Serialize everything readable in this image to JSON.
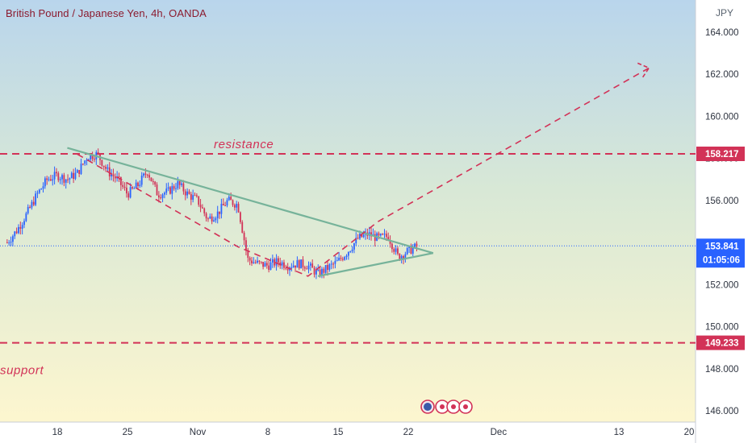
{
  "header": {
    "title": "British Pound / Japanese Yen, 4h, OANDA",
    "currency": "JPY"
  },
  "colors": {
    "up": "#2962ff",
    "down": "#d23257",
    "trendline": "#76b39a",
    "annotation": "#d23257",
    "price_line": "#2962ff"
  },
  "chart_data": {
    "type": "candlestick",
    "title": "British Pound / Japanese Yen, 4h, OANDA",
    "ylabel": "JPY",
    "ylim": [
      145.7,
      164.9
    ],
    "y_ticks": [
      "164.000",
      "162.000",
      "160.000",
      "158.000",
      "156.000",
      "152.000",
      "150.000",
      "148.000",
      "146.000"
    ],
    "x_ticks": [
      "18",
      "25",
      "Nov",
      "8",
      "15",
      "22",
      "Dec",
      "13",
      "20"
    ],
    "last_price": "153.841",
    "countdown": "01:05:06",
    "levels": [
      {
        "label": "resistance",
        "value": 158.217,
        "tag": "158.217"
      },
      {
        "label": "support",
        "value": 149.233,
        "tag": "149.233"
      }
    ],
    "price_path": [
      [
        "Oct 13",
        154.0
      ],
      [
        "Oct 14",
        154.6
      ],
      [
        "Oct 15",
        155.4
      ],
      [
        "Oct 16",
        156.3
      ],
      [
        "Oct 17",
        157.0
      ],
      [
        "Oct 18",
        157.2
      ],
      [
        "Oct 19",
        157.0
      ],
      [
        "Oct 20",
        157.3
      ],
      [
        "Oct 21",
        158.1
      ],
      [
        "Oct 22",
        158.2
      ],
      [
        "Oct 23",
        157.4
      ],
      [
        "Oct 24",
        157.0
      ],
      [
        "Oct 25",
        156.3
      ],
      [
        "Oct 26",
        156.7
      ],
      [
        "Oct 27",
        157.4
      ],
      [
        "Oct 28",
        156.3
      ],
      [
        "Oct 29",
        156.4
      ],
      [
        "Oct 30",
        156.8
      ],
      [
        "Oct 31",
        156.3
      ],
      [
        "Nov 1",
        156.0
      ],
      [
        "Nov 2",
        155.1
      ],
      [
        "Nov 3",
        155.4
      ],
      [
        "Nov 4",
        156.0
      ],
      [
        "Nov 5",
        155.8
      ],
      [
        "Nov 6",
        153.2
      ],
      [
        "Nov 7",
        153.0
      ],
      [
        "Nov 8",
        152.9
      ],
      [
        "Nov 9",
        153.1
      ],
      [
        "Nov 10",
        152.9
      ],
      [
        "Nov 11",
        153.0
      ],
      [
        "Nov 12",
        152.9
      ],
      [
        "Nov 13",
        152.5
      ],
      [
        "Nov 14",
        152.8
      ],
      [
        "Nov 15",
        153.1
      ],
      [
        "Nov 16",
        153.6
      ],
      [
        "Nov 17",
        154.2
      ],
      [
        "Nov 18",
        154.4
      ],
      [
        "Nov 19",
        154.2
      ],
      [
        "Nov 20",
        154.3
      ],
      [
        "Nov 21",
        153.3
      ],
      [
        "Nov 22",
        153.6
      ],
      [
        "Nov 23",
        153.84
      ]
    ],
    "trendlines": [
      {
        "name": "upper",
        "from": [
          "Oct 19",
          158.5
        ],
        "to": [
          "Nov 24",
          153.5
        ]
      },
      {
        "name": "lower",
        "from": [
          "Nov 13",
          152.4
        ],
        "to": [
          "Nov 24",
          153.5
        ]
      }
    ],
    "projection": [
      [
        "Oct 20",
        158.2
      ],
      [
        "Nov 5",
        153.8
      ],
      [
        "Nov 12",
        152.4
      ],
      [
        "Nov 19",
        155.0
      ],
      [
        "Dec 16",
        162.3
      ]
    ]
  }
}
